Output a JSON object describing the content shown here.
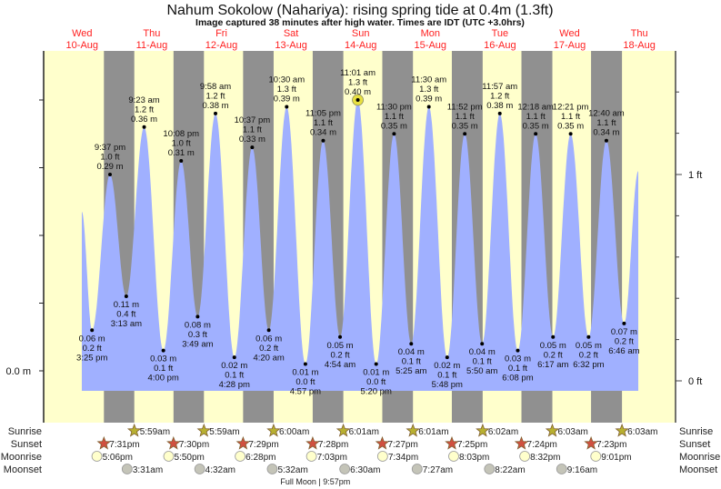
{
  "chart_data": {
    "type": "area",
    "title": "Nahum Sokolow (Nahariya): rising  spring tide at 0.4m (1.3ft)",
    "subtitle": "Image captured 38 minutes after high water. Times are IDT (UTC +3.0hrs)",
    "left_axis": {
      "label_zero": "0.0 m",
      "unit": "m",
      "range": [
        -0.02,
        0.47
      ],
      "ticks": [
        0.0,
        0.1,
        0.2,
        0.3,
        0.4
      ]
    },
    "right_axis": {
      "labels": [
        "0 ft",
        "1 ft"
      ],
      "unit": "ft",
      "minor_step": 0.2
    },
    "days": [
      {
        "dow": "Wed",
        "date": "10-Aug"
      },
      {
        "dow": "Thu",
        "date": "11-Aug"
      },
      {
        "dow": "Fri",
        "date": "12-Aug"
      },
      {
        "dow": "Sat",
        "date": "13-Aug"
      },
      {
        "dow": "Sun",
        "date": "14-Aug"
      },
      {
        "dow": "Mon",
        "date": "15-Aug"
      },
      {
        "dow": "Tue",
        "date": "16-Aug"
      },
      {
        "dow": "Wed",
        "date": "17-Aug"
      },
      {
        "dow": "Thu",
        "date": "18-Aug"
      }
    ],
    "series_start": {
      "day": 10,
      "time": "11:54 am",
      "m": 0.235
    },
    "series_end": {
      "day": 18,
      "time": "11:40 am",
      "m": 0.295
    },
    "extremes": [
      {
        "type": "low",
        "day": 10,
        "time": "3:25 pm",
        "m": "0.06 m",
        "ft": "0.2 ft",
        "v": 0.06
      },
      {
        "type": "high",
        "day": 10,
        "time": "9:37 pm",
        "m": "0.29 m",
        "ft": "1.0 ft",
        "v": 0.29
      },
      {
        "type": "low",
        "day": 11,
        "time": "3:13 am",
        "m": "0.11 m",
        "ft": "0.4 ft",
        "v": 0.11
      },
      {
        "type": "high",
        "day": 11,
        "time": "9:23 am",
        "m": "0.36 m",
        "ft": "1.2 ft",
        "v": 0.36
      },
      {
        "type": "low",
        "day": 11,
        "time": "4:00 pm",
        "m": "0.03 m",
        "ft": "0.1 ft",
        "v": 0.03
      },
      {
        "type": "high",
        "day": 11,
        "time": "10:08 pm",
        "m": "0.31 m",
        "ft": "1.0 ft",
        "v": 0.31
      },
      {
        "type": "low",
        "day": 12,
        "time": "3:49 am",
        "m": "0.08 m",
        "ft": "0.3 ft",
        "v": 0.08
      },
      {
        "type": "high",
        "day": 12,
        "time": "9:58 am",
        "m": "0.38 m",
        "ft": "1.2 ft",
        "v": 0.38
      },
      {
        "type": "low",
        "day": 12,
        "time": "4:28 pm",
        "m": "0.02 m",
        "ft": "0.1 ft",
        "v": 0.02
      },
      {
        "type": "high",
        "day": 12,
        "time": "10:37 pm",
        "m": "0.33 m",
        "ft": "1.1 ft",
        "v": 0.33
      },
      {
        "type": "low",
        "day": 13,
        "time": "4:20 am",
        "m": "0.06 m",
        "ft": "0.2 ft",
        "v": 0.06
      },
      {
        "type": "high",
        "day": 13,
        "time": "10:30 am",
        "m": "0.39 m",
        "ft": "1.3 ft",
        "v": 0.39
      },
      {
        "type": "low",
        "day": 13,
        "time": "4:57 pm",
        "m": "0.01 m",
        "ft": "0.0 ft",
        "v": 0.01
      },
      {
        "type": "high",
        "day": 13,
        "time": "11:05 pm",
        "m": "0.34 m",
        "ft": "1.1 ft",
        "v": 0.34
      },
      {
        "type": "low",
        "day": 14,
        "time": "4:54 am",
        "m": "0.05 m",
        "ft": "0.2 ft",
        "v": 0.05
      },
      {
        "type": "high",
        "day": 14,
        "time": "11:01 am",
        "m": "0.40 m",
        "ft": "1.3 ft",
        "v": 0.4,
        "current": true
      },
      {
        "type": "low",
        "day": 14,
        "time": "5:20 pm",
        "m": "0.01 m",
        "ft": "0.0 ft",
        "v": 0.01
      },
      {
        "type": "high",
        "day": 14,
        "time": "11:30 pm",
        "m": "0.35 m",
        "ft": "1.1 ft",
        "v": 0.35
      },
      {
        "type": "low",
        "day": 15,
        "time": "5:25 am",
        "m": "0.04 m",
        "ft": "0.1 ft",
        "v": 0.04
      },
      {
        "type": "high",
        "day": 15,
        "time": "11:30 am",
        "m": "0.39 m",
        "ft": "1.3 ft",
        "v": 0.39
      },
      {
        "type": "low",
        "day": 15,
        "time": "5:48 pm",
        "m": "0.02 m",
        "ft": "0.1 ft",
        "v": 0.02
      },
      {
        "type": "high",
        "day": 15,
        "time": "11:52 pm",
        "m": "0.35 m",
        "ft": "1.1 ft",
        "v": 0.35
      },
      {
        "type": "low",
        "day": 16,
        "time": "5:50 am",
        "m": "0.04 m",
        "ft": "0.1 ft",
        "v": 0.04
      },
      {
        "type": "high",
        "day": 16,
        "time": "11:57 am",
        "m": "0.38 m",
        "ft": "1.2 ft",
        "v": 0.38
      },
      {
        "type": "low",
        "day": 16,
        "time": "6:08 pm",
        "m": "0.03 m",
        "ft": "0.1 ft",
        "v": 0.03
      },
      {
        "type": "high",
        "day": 17,
        "time": "12:18 am",
        "m": "0.35 m",
        "ft": "1.1 ft",
        "v": 0.35
      },
      {
        "type": "low",
        "day": 17,
        "time": "6:17 am",
        "m": "0.05 m",
        "ft": "0.2 ft",
        "v": 0.05
      },
      {
        "type": "high",
        "day": 17,
        "time": "12:21 pm",
        "m": "0.35 m",
        "ft": "1.1 ft",
        "v": 0.35
      },
      {
        "type": "low",
        "day": 17,
        "time": "6:32 pm",
        "m": "0.05 m",
        "ft": "0.2 ft",
        "v": 0.05
      },
      {
        "type": "high",
        "day": 18,
        "time": "12:40 am",
        "m": "0.34 m",
        "ft": "1.1 ft",
        "v": 0.34
      },
      {
        "type": "low",
        "day": 18,
        "time": "6:46 am",
        "m": "0.07 m",
        "ft": "0.2 ft",
        "v": 0.07
      }
    ],
    "rows": {
      "sunrise_label": "Sunrise",
      "sunset_label": "Sunset",
      "moonrise_label": "Moonrise",
      "moonset_label": "Moonset",
      "sunrise": [
        {
          "day": 11,
          "time": "5:59am"
        },
        {
          "day": 12,
          "time": "5:59am"
        },
        {
          "day": 13,
          "time": "6:00am"
        },
        {
          "day": 14,
          "time": "6:01am"
        },
        {
          "day": 15,
          "time": "6:01am"
        },
        {
          "day": 16,
          "time": "6:02am"
        },
        {
          "day": 17,
          "time": "6:03am"
        },
        {
          "day": 18,
          "time": "6:03am"
        }
      ],
      "sunset": [
        {
          "day": 10,
          "time": "7:31pm"
        },
        {
          "day": 11,
          "time": "7:30pm"
        },
        {
          "day": 12,
          "time": "7:29pm"
        },
        {
          "day": 13,
          "time": "7:28pm"
        },
        {
          "day": 14,
          "time": "7:27pm"
        },
        {
          "day": 15,
          "time": "7:25pm"
        },
        {
          "day": 16,
          "time": "7:24pm"
        },
        {
          "day": 17,
          "time": "7:23pm"
        }
      ],
      "moonrise": [
        {
          "day": 10,
          "time": "5:06pm"
        },
        {
          "day": 11,
          "time": "5:50pm"
        },
        {
          "day": 12,
          "time": "6:28pm"
        },
        {
          "day": 13,
          "time": "7:03pm"
        },
        {
          "day": 14,
          "time": "7:34pm"
        },
        {
          "day": 15,
          "time": "8:03pm"
        },
        {
          "day": 16,
          "time": "8:32pm"
        },
        {
          "day": 17,
          "time": "9:01pm"
        }
      ],
      "moonset": [
        {
          "day": 11,
          "time": "3:31am"
        },
        {
          "day": 12,
          "time": "4:32am"
        },
        {
          "day": 13,
          "time": "5:32am"
        },
        {
          "day": 14,
          "time": "6:30am"
        },
        {
          "day": 15,
          "time": "7:27am"
        },
        {
          "day": 16,
          "time": "8:22am"
        },
        {
          "day": 17,
          "time": "9:16am"
        }
      ],
      "moon_phase": {
        "day": 13,
        "time": "9:57pm",
        "text": "Full Moon | 9:57pm"
      }
    },
    "colors": {
      "day": "#ffffcc",
      "night": "#909090",
      "water": "#a0b0ff",
      "day_label": "#ff2020",
      "sunrise": "#b8b030",
      "sunset": "#d05040",
      "moonrise": "#ffffcc",
      "moonset": "#c4c4b8",
      "current": "#e8e040"
    }
  }
}
